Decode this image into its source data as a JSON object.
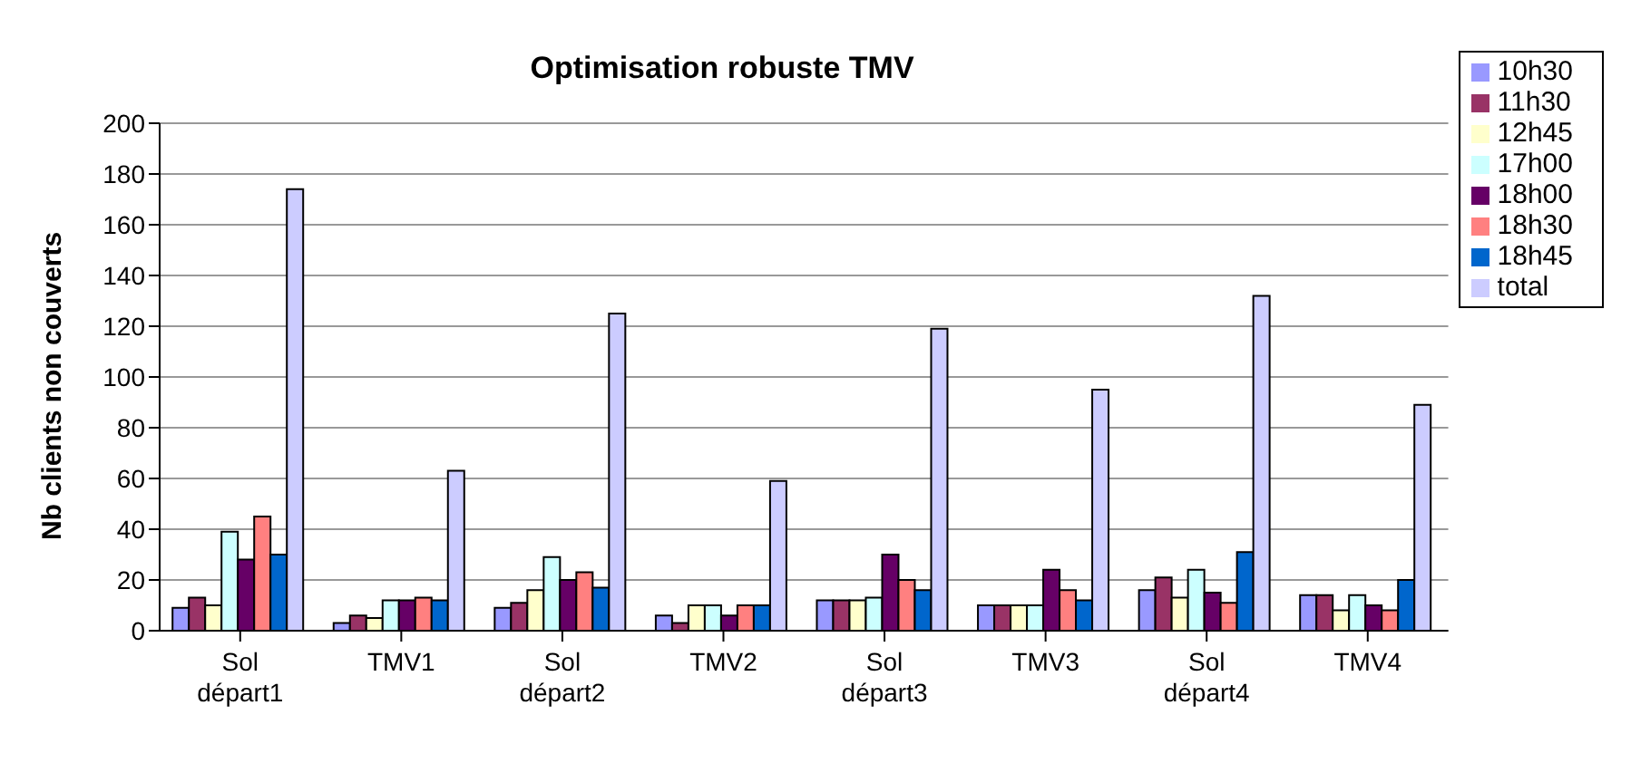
{
  "chart_data": {
    "type": "bar",
    "title": "Optimisation robuste TMV",
    "ylabel": "Nb clients non couverts",
    "categories": [
      "Sol départ1",
      "TMV1",
      "Sol départ2",
      "TMV2",
      "Sol départ3",
      "TMV3",
      "Sol départ4",
      "TMV4"
    ],
    "series": [
      {
        "name": "10h30",
        "color": "#9999ff",
        "values": [
          9,
          3,
          9,
          6,
          12,
          10,
          16,
          14
        ]
      },
      {
        "name": "11h30",
        "color": "#993366",
        "values": [
          13,
          6,
          11,
          3,
          12,
          10,
          21,
          14
        ]
      },
      {
        "name": "12h45",
        "color": "#ffffcc",
        "values": [
          10,
          5,
          16,
          10,
          12,
          10,
          13,
          8
        ]
      },
      {
        "name": "17h00",
        "color": "#ccffff",
        "values": [
          39,
          12,
          29,
          10,
          13,
          10,
          24,
          14
        ]
      },
      {
        "name": "18h00",
        "color": "#660066",
        "values": [
          28,
          12,
          20,
          6,
          30,
          24,
          15,
          10
        ]
      },
      {
        "name": "18h30",
        "color": "#ff8080",
        "values": [
          45,
          13,
          23,
          10,
          20,
          16,
          11,
          8
        ]
      },
      {
        "name": "18h45",
        "color": "#0066cc",
        "values": [
          30,
          12,
          17,
          10,
          16,
          12,
          31,
          20
        ]
      },
      {
        "name": "total",
        "color": "#ccccff",
        "values": [
          174,
          63,
          125,
          59,
          119,
          95,
          132,
          89
        ]
      }
    ],
    "ylim": [
      0,
      200
    ],
    "yticks": [
      0,
      20,
      40,
      60,
      80,
      100,
      120,
      140,
      160,
      180,
      200
    ],
    "grid": "y",
    "legend": "right"
  }
}
